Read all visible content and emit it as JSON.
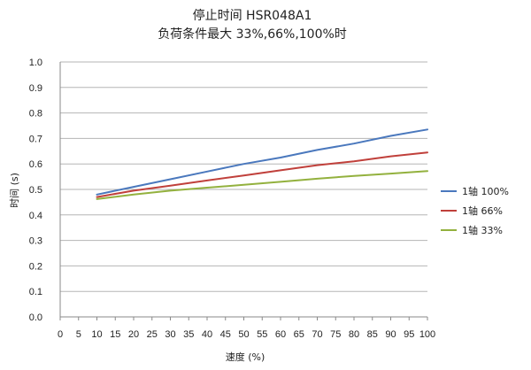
{
  "chart_data": {
    "type": "line",
    "title": "停止时间 HSR048A1",
    "subtitle": "负荷条件最大 33%,66%,100%时",
    "xlabel": "速度 (%)",
    "ylabel": "时间 (s)",
    "xlim": [
      0,
      100
    ],
    "ylim": [
      0.0,
      1.0
    ],
    "x_ticks": [
      "0",
      "5",
      "10",
      "15",
      "20",
      "25",
      "30",
      "35",
      "40",
      "45",
      "50",
      "55",
      "60",
      "65",
      "70",
      "75",
      "80",
      "85",
      "90",
      "95",
      "100"
    ],
    "y_ticks": [
      "0.0",
      "0.1",
      "0.2",
      "0.3",
      "0.4",
      "0.5",
      "0.6",
      "0.7",
      "0.8",
      "0.9",
      "1.0"
    ],
    "grid": "horizontal",
    "legend_position": "right",
    "x": [
      10,
      20,
      30,
      40,
      50,
      60,
      70,
      80,
      90,
      100
    ],
    "series": [
      {
        "name": "1轴 100%",
        "color": "#4a78bd",
        "values": [
          0.48,
          0.51,
          0.54,
          0.57,
          0.6,
          0.625,
          0.655,
          0.68,
          0.71,
          0.735
        ]
      },
      {
        "name": "1轴 66%",
        "color": "#c0403b",
        "values": [
          0.47,
          0.495,
          0.515,
          0.535,
          0.555,
          0.575,
          0.595,
          0.61,
          0.63,
          0.645
        ]
      },
      {
        "name": "1轴 33%",
        "color": "#93b13e",
        "values": [
          0.462,
          0.48,
          0.495,
          0.507,
          0.518,
          0.53,
          0.542,
          0.553,
          0.562,
          0.572
        ]
      }
    ]
  }
}
